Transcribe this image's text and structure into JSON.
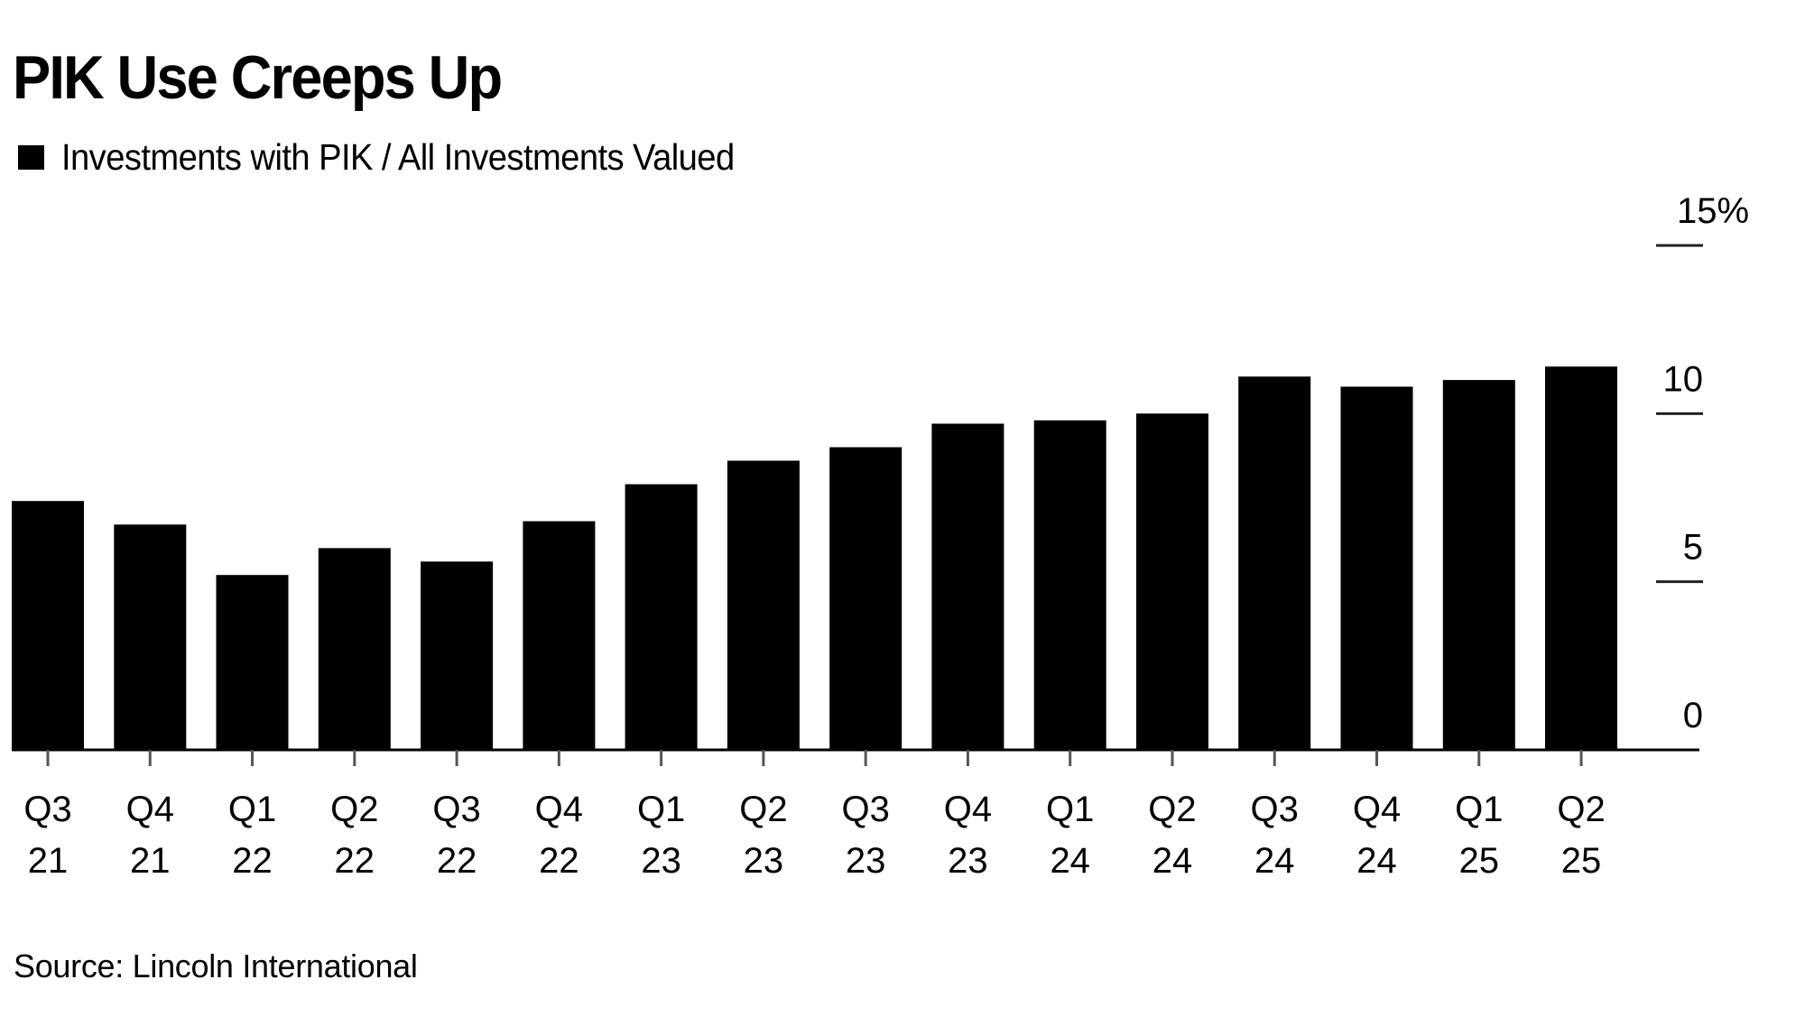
{
  "chart_data": {
    "type": "bar",
    "title": "PIK Use Creeps Up",
    "legend": [
      {
        "label": "Investments with PIK / All Investments Valued",
        "color": "#000000"
      }
    ],
    "legend_position": "top-left",
    "source": "Source: Lincoln International",
    "categories": [
      [
        "Q3",
        "21"
      ],
      [
        "Q4",
        "21"
      ],
      [
        "Q1",
        "22"
      ],
      [
        "Q2",
        "22"
      ],
      [
        "Q3",
        "22"
      ],
      [
        "Q4",
        "22"
      ],
      [
        "Q1",
        "23"
      ],
      [
        "Q2",
        "23"
      ],
      [
        "Q3",
        "23"
      ],
      [
        "Q4",
        "23"
      ],
      [
        "Q1",
        "24"
      ],
      [
        "Q2",
        "24"
      ],
      [
        "Q3",
        "24"
      ],
      [
        "Q4",
        "24"
      ],
      [
        "Q1",
        "25"
      ],
      [
        "Q2",
        "25"
      ]
    ],
    "series": [
      {
        "name": "Investments with PIK / All Investments Valued",
        "color": "#000000",
        "values": [
          7.4,
          6.7,
          5.2,
          6.0,
          5.6,
          6.8,
          7.9,
          8.6,
          9.0,
          9.7,
          9.8,
          10.0,
          11.1,
          10.8,
          11.0,
          11.4
        ]
      }
    ],
    "xlabel": "",
    "ylabel": "",
    "ylim": [
      0,
      15
    ],
    "y_ticks": [
      0,
      5,
      10,
      15
    ],
    "y_tick_labels": [
      "0",
      "5",
      "10",
      "15%"
    ],
    "y_axis_side": "right",
    "grid": false
  }
}
